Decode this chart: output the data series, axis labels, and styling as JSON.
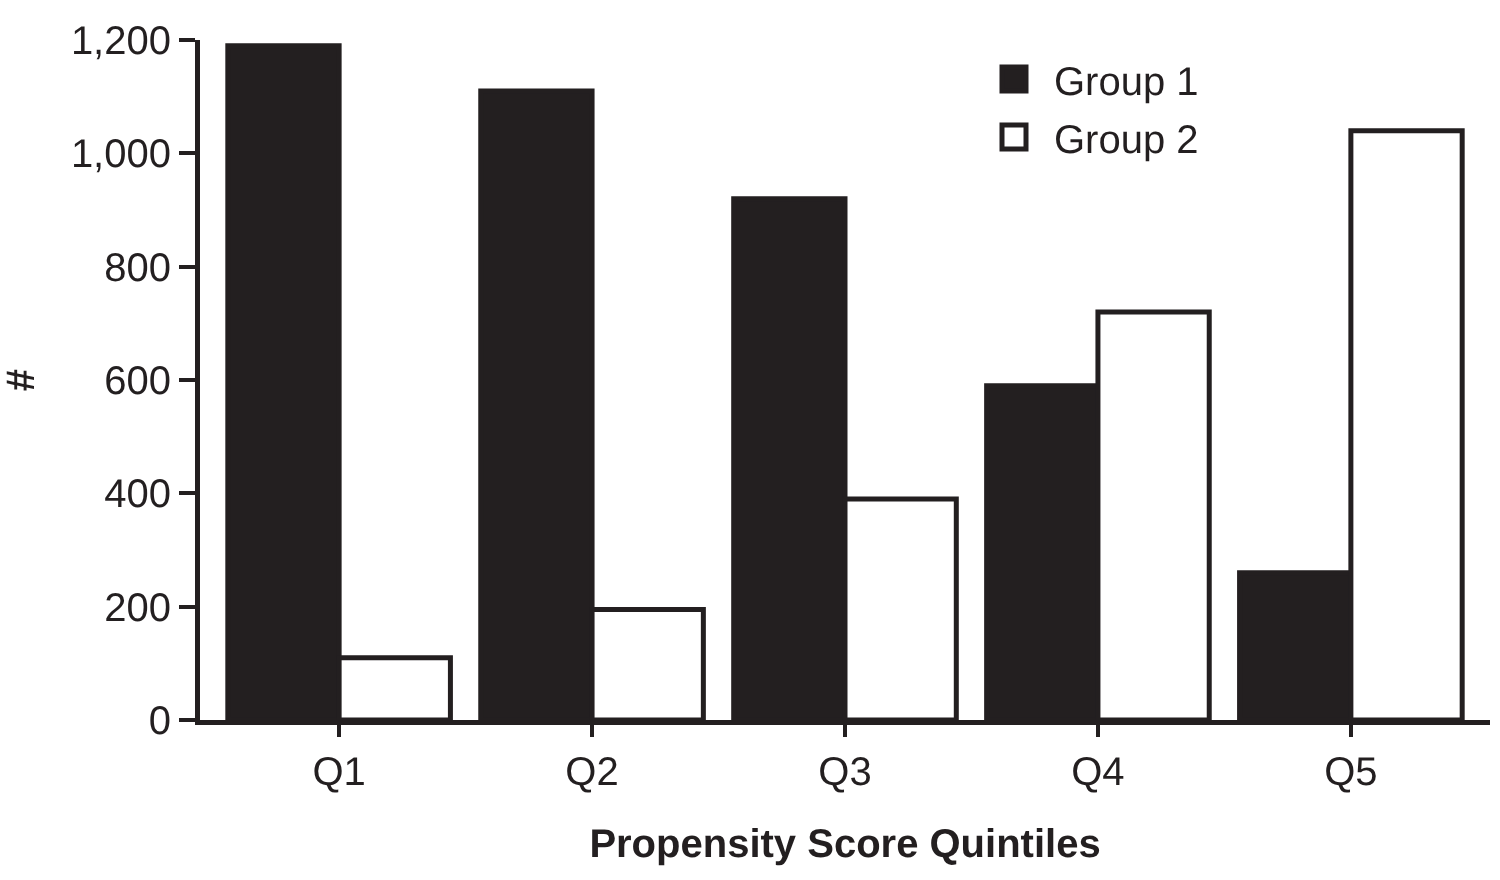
{
  "chart_data": {
    "type": "bar",
    "xlabel": "Propensity Score Quintiles",
    "ylabel": "#",
    "categories": [
      "Q1",
      "Q2",
      "Q3",
      "Q4",
      "Q5"
    ],
    "series": [
      {
        "name": "Group 1",
        "color": "#231f20",
        "values": [
          1190,
          1110,
          920,
          590,
          260
        ]
      },
      {
        "name": "Group 2",
        "color": "#ffffff",
        "values": [
          110,
          195,
          390,
          720,
          1040
        ]
      }
    ],
    "ylim": [
      0,
      1200
    ],
    "yticks": [
      {
        "value": 0,
        "label": "0"
      },
      {
        "value": 200,
        "label": "200"
      },
      {
        "value": 400,
        "label": "400"
      },
      {
        "value": 600,
        "label": "600"
      },
      {
        "value": 800,
        "label": "800"
      },
      {
        "value": 1000,
        "label": "1,000"
      },
      {
        "value": 1200,
        "label": "1,200"
      }
    ],
    "grid": false,
    "legend": "top right"
  }
}
